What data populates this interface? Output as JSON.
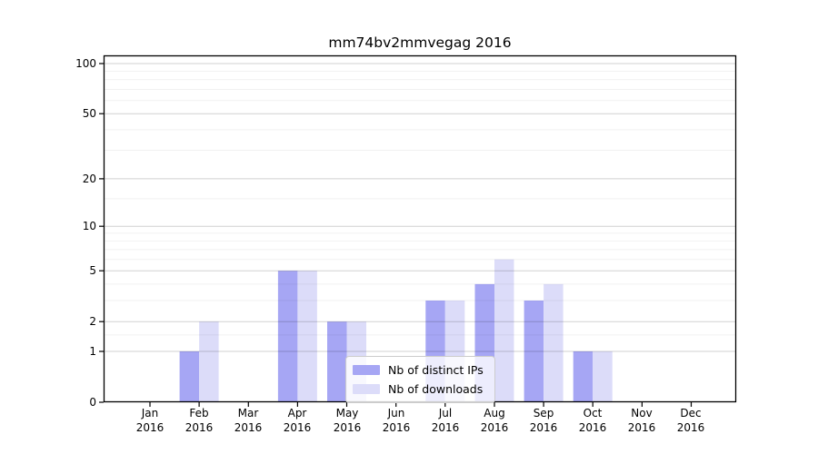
{
  "title": "mm74bv2mmvegag 2016",
  "chart_data": {
    "type": "bar",
    "year": "2016",
    "months": [
      "Jan",
      "Feb",
      "Mar",
      "Apr",
      "May",
      "Jun",
      "Jul",
      "Aug",
      "Sep",
      "Oct",
      "Nov",
      "Dec"
    ],
    "series": [
      {
        "name": "Nb of distinct IPs",
        "color": "#a6a6f4",
        "values": [
          0,
          1,
          0,
          5,
          2,
          0,
          3,
          4,
          3,
          1,
          0,
          0
        ]
      },
      {
        "name": "Nb of downloads",
        "color": "#dcdcf9",
        "values": [
          0,
          2,
          0,
          5,
          2,
          0,
          3,
          6,
          4,
          1,
          0,
          0
        ]
      }
    ],
    "y_scale": "log1p",
    "y_ticks": [
      0,
      1,
      2,
      5,
      10,
      20,
      50,
      100
    ],
    "y_tick_labels": [
      "0",
      "1",
      "2",
      "5",
      "10",
      "20",
      "50",
      "100"
    ],
    "y_minor_gridlines": [
      1.5,
      3,
      4,
      6,
      7,
      8,
      9,
      15,
      30,
      40,
      60,
      70,
      80,
      90
    ],
    "ylim": [
      0,
      112
    ],
    "grid": true,
    "legend_position": "lower center",
    "legend_labels": [
      "Nb of distinct IPs",
      "Nb of downloads"
    ]
  },
  "colors": {
    "background": "#ffffff",
    "bar_distinct_ips": "#a6a6f4",
    "bar_downloads": "#dcdcf9",
    "grid_major": "rgba(0,0,0,0.185)",
    "grid_minor": "rgba(0,0,0,0.055)",
    "spine": "#000000",
    "text": "#000000",
    "legend_border": "#cccccc"
  }
}
